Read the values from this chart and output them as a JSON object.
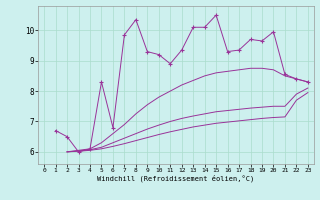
{
  "xlabel": "Windchill (Refroidissement éolien,°C)",
  "background_color": "#cdf0ee",
  "line_color": "#993399",
  "grid_color": "#aaddcc",
  "xlim": [
    -0.5,
    23.5
  ],
  "ylim": [
    5.6,
    10.8
  ],
  "xticks": [
    0,
    1,
    2,
    3,
    4,
    5,
    6,
    7,
    8,
    9,
    10,
    11,
    12,
    13,
    14,
    15,
    16,
    17,
    18,
    19,
    20,
    21,
    22,
    23
  ],
  "yticks": [
    6,
    7,
    8,
    9,
    10
  ],
  "line1_x": [
    1,
    2,
    3,
    4,
    5,
    6,
    7,
    8,
    9,
    10,
    11,
    12,
    13,
    14,
    15,
    16,
    17,
    18,
    19,
    20,
    21,
    22,
    23
  ],
  "line1_y": [
    6.7,
    6.5,
    6.0,
    6.1,
    8.3,
    6.8,
    9.85,
    10.35,
    9.3,
    9.2,
    8.9,
    9.35,
    10.1,
    10.1,
    10.5,
    9.3,
    9.35,
    9.7,
    9.65,
    9.95,
    8.55,
    8.4,
    8.3
  ],
  "line2_x": [
    2,
    3,
    4,
    5,
    6,
    7,
    8,
    9,
    10,
    11,
    12,
    13,
    14,
    15,
    16,
    17,
    18,
    19,
    20,
    21,
    22,
    23
  ],
  "line2_y": [
    6.0,
    6.05,
    6.1,
    6.3,
    6.6,
    6.9,
    7.25,
    7.55,
    7.8,
    8.0,
    8.2,
    8.35,
    8.5,
    8.6,
    8.65,
    8.7,
    8.75,
    8.75,
    8.7,
    8.5,
    8.4,
    8.3
  ],
  "line3_x": [
    2,
    3,
    4,
    5,
    6,
    7,
    8,
    9,
    10,
    11,
    12,
    13,
    14,
    15,
    16,
    17,
    18,
    19,
    20,
    21,
    22,
    23
  ],
  "line3_y": [
    6.0,
    6.03,
    6.07,
    6.15,
    6.3,
    6.45,
    6.6,
    6.75,
    6.88,
    7.0,
    7.1,
    7.18,
    7.25,
    7.32,
    7.36,
    7.4,
    7.44,
    7.47,
    7.5,
    7.5,
    7.9,
    8.1
  ],
  "line4_x": [
    2,
    3,
    4,
    5,
    6,
    7,
    8,
    9,
    10,
    11,
    12,
    13,
    14,
    15,
    16,
    17,
    18,
    19,
    20,
    21,
    22,
    23
  ],
  "line4_y": [
    6.0,
    6.02,
    6.05,
    6.1,
    6.18,
    6.27,
    6.37,
    6.47,
    6.57,
    6.66,
    6.74,
    6.82,
    6.88,
    6.94,
    6.98,
    7.02,
    7.06,
    7.1,
    7.13,
    7.15,
    7.7,
    7.95
  ]
}
